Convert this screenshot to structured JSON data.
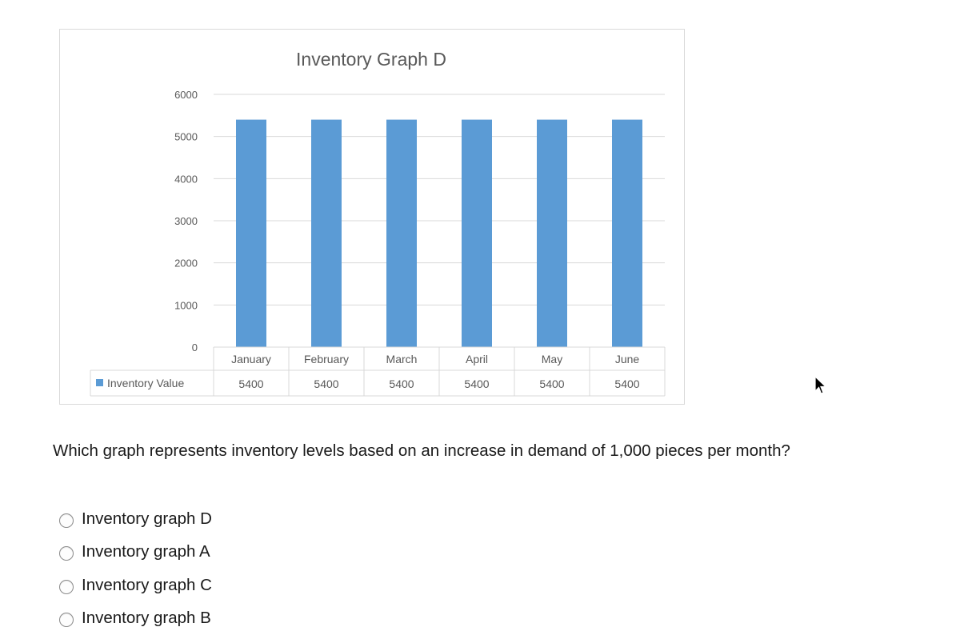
{
  "chart_data": {
    "type": "bar",
    "title": "Inventory Graph D",
    "categories": [
      "January",
      "February",
      "March",
      "April",
      "May",
      "June"
    ],
    "series": [
      {
        "name": "Inventory Value",
        "values": [
          5400,
          5400,
          5400,
          5400,
          5400,
          5400
        ]
      }
    ],
    "yticks": [
      "0",
      "1000",
      "2000",
      "3000",
      "4000",
      "5000",
      "6000"
    ],
    "ylim": [
      0,
      6000
    ],
    "data_table": true,
    "grid": true,
    "bar_color": "#5b9bd5"
  },
  "question": {
    "text": "Which graph represents inventory levels based on an increase in demand of 1,000 pieces per month?"
  },
  "options": [
    {
      "label": "Inventory graph D"
    },
    {
      "label": "Inventory graph A"
    },
    {
      "label": "Inventory graph C"
    },
    {
      "label": "Inventory graph B"
    }
  ]
}
